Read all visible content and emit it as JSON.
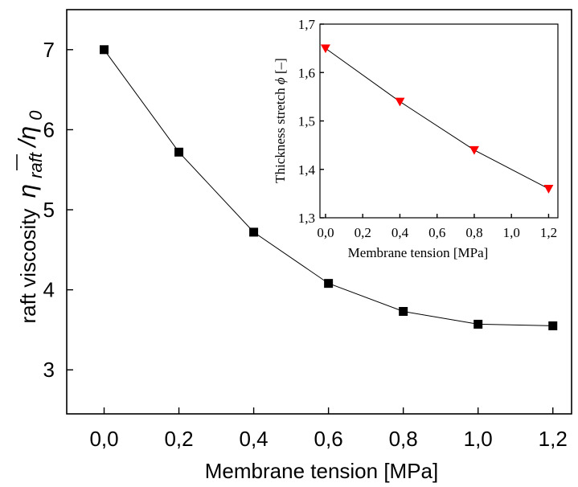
{
  "chart_data": [
    {
      "type": "line",
      "x": [
        0.0,
        0.2,
        0.4,
        0.6,
        0.8,
        1.0,
        1.2
      ],
      "y": [
        7.0,
        5.72,
        4.72,
        4.08,
        3.73,
        3.57,
        3.55
      ],
      "marker": "square",
      "color": "#000000",
      "xlim": [
        -0.1,
        1.25
      ],
      "ylim": [
        2.45,
        7.5
      ],
      "xticks": [
        0.0,
        0.2,
        0.4,
        0.6,
        0.8,
        1.0,
        1.2
      ],
      "xtick_labels": [
        "0,0",
        "0,2",
        "0,4",
        "0,6",
        "0,8",
        "1,0",
        "1,2"
      ],
      "yticks": [
        3,
        4,
        5,
        6,
        7
      ],
      "ytick_labels": [
        "3",
        "4",
        "5",
        "6",
        "7"
      ],
      "xlabel": "Membrane tension [MPa]",
      "ylabel_prefix": "raft viscosity",
      "ylabel_eta": "η",
      "ylabel_sub": "raft",
      "ylabel_tail": "/η",
      "ylabel_sub0": "0"
    },
    {
      "type": "line",
      "x": [
        0.0,
        0.4,
        0.8,
        1.2
      ],
      "y": [
        1.65,
        1.54,
        1.44,
        1.36
      ],
      "marker": "triangle-down",
      "color": "#ff0000",
      "xlim": [
        -0.03,
        1.25
      ],
      "ylim": [
        1.3,
        1.7
      ],
      "xticks": [
        0.0,
        0.2,
        0.4,
        0.6,
        0.8,
        1.0,
        1.2
      ],
      "xtick_labels": [
        "0,0",
        "0,2",
        "0,4",
        "0,6",
        "0,8",
        "1,0",
        "1,2"
      ],
      "yticks": [
        1.3,
        1.4,
        1.5,
        1.6,
        1.7
      ],
      "ytick_labels": [
        "1,3",
        "1,4",
        "1,5",
        "1,6",
        "1,7"
      ],
      "xlabel": "Membrane tension [MPa]",
      "ylabel_prefix": "Thickness stretch ",
      "ylabel_phi": "ϕ",
      "ylabel_unit": "[–]"
    }
  ]
}
